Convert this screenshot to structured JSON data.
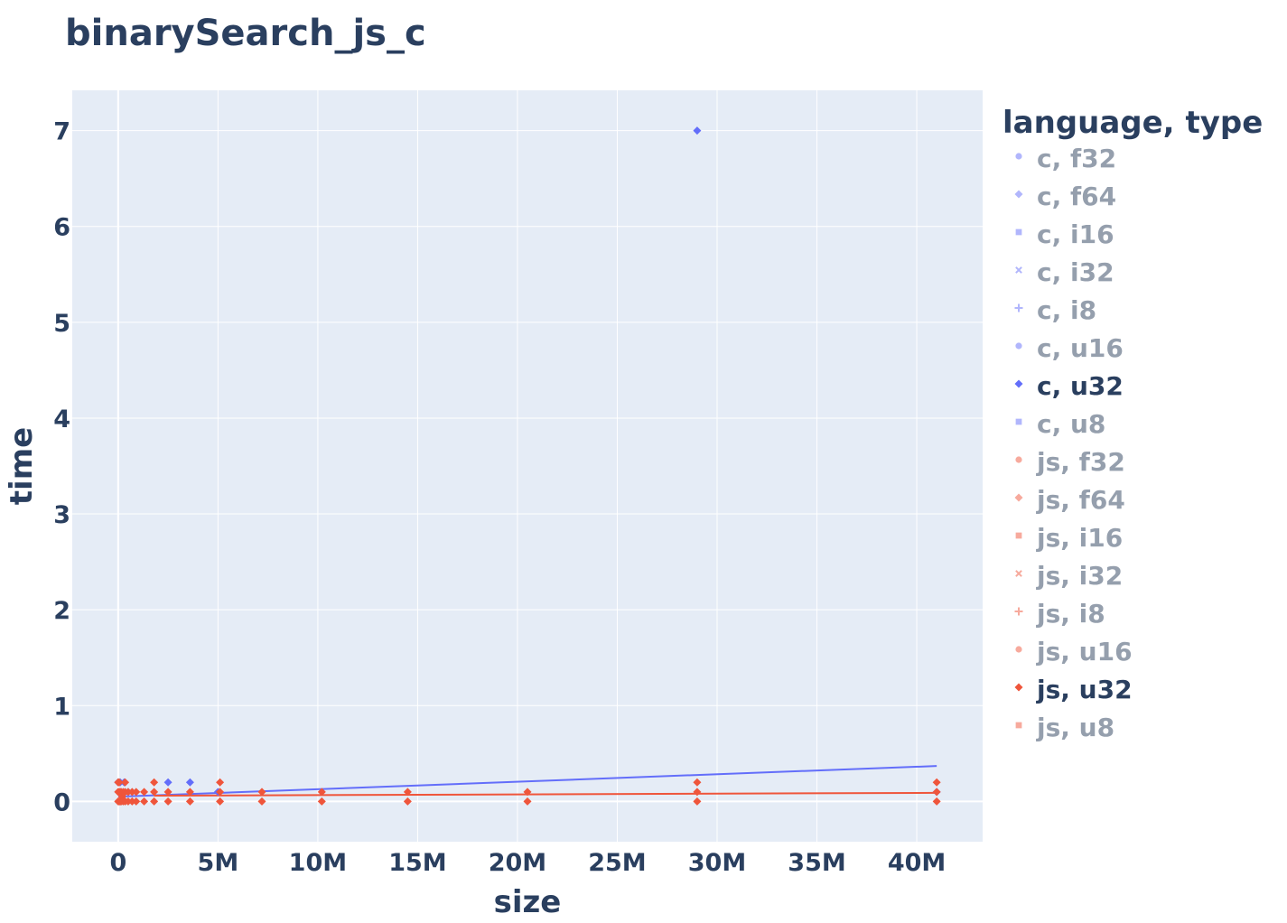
{
  "chart_data": {
    "type": "scatter",
    "title": "binarySearch_js_c",
    "xlabel": "size",
    "ylabel": "time",
    "xlim": [
      -2300000,
      43300000
    ],
    "ylim": [
      -0.42,
      7.42
    ],
    "x_ticks": [
      {
        "value": 0,
        "label": "0"
      },
      {
        "value": 5000000,
        "label": "5M"
      },
      {
        "value": 10000000,
        "label": "10M"
      },
      {
        "value": 15000000,
        "label": "15M"
      },
      {
        "value": 20000000,
        "label": "20M"
      },
      {
        "value": 25000000,
        "label": "25M"
      },
      {
        "value": 30000000,
        "label": "30M"
      },
      {
        "value": 35000000,
        "label": "35M"
      },
      {
        "value": 40000000,
        "label": "40M"
      }
    ],
    "y_ticks": [
      {
        "value": 0,
        "label": "0"
      },
      {
        "value": 1,
        "label": "1"
      },
      {
        "value": 2,
        "label": "2"
      },
      {
        "value": 3,
        "label": "3"
      },
      {
        "value": 4,
        "label": "4"
      },
      {
        "value": 5,
        "label": "5"
      },
      {
        "value": 6,
        "label": "6"
      },
      {
        "value": 7,
        "label": "7"
      }
    ],
    "grid": true,
    "legend_title": "language, type",
    "legend_position": "right",
    "legend": [
      {
        "name": "c, f32",
        "color": "#636efa",
        "symbol": "circle",
        "active": false
      },
      {
        "name": "c, f64",
        "color": "#636efa",
        "symbol": "diamond",
        "active": false
      },
      {
        "name": "c, i16",
        "color": "#636efa",
        "symbol": "square",
        "active": false
      },
      {
        "name": "c, i32",
        "color": "#636efa",
        "symbol": "x",
        "active": false
      },
      {
        "name": "c, i8",
        "color": "#636efa",
        "symbol": "cross",
        "active": false
      },
      {
        "name": "c, u16",
        "color": "#636efa",
        "symbol": "circle",
        "active": false
      },
      {
        "name": "c, u32",
        "color": "#636efa",
        "symbol": "diamond",
        "active": true
      },
      {
        "name": "c, u8",
        "color": "#636efa",
        "symbol": "square",
        "active": false
      },
      {
        "name": "js, f32",
        "color": "#ef553b",
        "symbol": "circle",
        "active": false
      },
      {
        "name": "js, f64",
        "color": "#ef553b",
        "symbol": "diamond",
        "active": false
      },
      {
        "name": "js, i16",
        "color": "#ef553b",
        "symbol": "square",
        "active": false
      },
      {
        "name": "js, i32",
        "color": "#ef553b",
        "symbol": "x",
        "active": false
      },
      {
        "name": "js, i8",
        "color": "#ef553b",
        "symbol": "cross",
        "active": false
      },
      {
        "name": "js, u16",
        "color": "#ef553b",
        "symbol": "circle",
        "active": false
      },
      {
        "name": "js, u32",
        "color": "#ef553b",
        "symbol": "diamond",
        "active": true
      },
      {
        "name": "js, u8",
        "color": "#ef553b",
        "symbol": "square",
        "active": false
      }
    ],
    "series": [
      {
        "name": "c, u32",
        "color": "#636efa",
        "symbol": "diamond",
        "points": [
          [
            0,
            0.2
          ],
          [
            100000,
            0.2
          ],
          [
            300000,
            0.2
          ],
          [
            500000,
            0.1
          ],
          [
            2500000,
            0.2
          ],
          [
            3600000,
            0.2
          ],
          [
            5000000,
            0.1
          ],
          [
            29000000,
            7.0
          ],
          [
            41000000,
            0.1
          ]
        ],
        "trendline": [
          [
            0,
            0.05
          ],
          [
            41000000,
            0.37
          ]
        ]
      },
      {
        "name": "js, u32",
        "color": "#ef553b",
        "symbol": "diamond",
        "points": [
          [
            0,
            0.0
          ],
          [
            0,
            0.1
          ],
          [
            0,
            0.2
          ],
          [
            50000,
            0.0
          ],
          [
            50000,
            0.1
          ],
          [
            50000,
            0.2
          ],
          [
            100000,
            0.0
          ],
          [
            100000,
            0.1
          ],
          [
            150000,
            0.0
          ],
          [
            150000,
            0.1
          ],
          [
            200000,
            0.05
          ],
          [
            250000,
            0.0
          ],
          [
            250000,
            0.1
          ],
          [
            350000,
            0.0
          ],
          [
            350000,
            0.1
          ],
          [
            350000,
            0.2
          ],
          [
            500000,
            0.0
          ],
          [
            500000,
            0.1
          ],
          [
            700000,
            0.0
          ],
          [
            700000,
            0.1
          ],
          [
            900000,
            0.0
          ],
          [
            900000,
            0.1
          ],
          [
            1300000,
            0.0
          ],
          [
            1300000,
            0.1
          ],
          [
            1800000,
            0.0
          ],
          [
            1800000,
            0.1
          ],
          [
            1800000,
            0.2
          ],
          [
            2500000,
            0.0
          ],
          [
            2500000,
            0.1
          ],
          [
            3600000,
            0.0
          ],
          [
            3600000,
            0.1
          ],
          [
            5100000,
            0.0
          ],
          [
            5100000,
            0.1
          ],
          [
            5100000,
            0.2
          ],
          [
            7200000,
            0.0
          ],
          [
            7200000,
            0.1
          ],
          [
            10200000,
            0.0
          ],
          [
            10200000,
            0.1
          ],
          [
            14500000,
            0.0
          ],
          [
            14500000,
            0.1
          ],
          [
            20500000,
            0.0
          ],
          [
            20500000,
            0.1
          ],
          [
            29000000,
            0.0
          ],
          [
            29000000,
            0.1
          ],
          [
            29000000,
            0.2
          ],
          [
            41000000,
            0.0
          ],
          [
            41000000,
            0.1
          ],
          [
            41000000,
            0.2
          ]
        ],
        "trendline": [
          [
            1800000,
            0.06
          ],
          [
            41000000,
            0.09
          ]
        ]
      }
    ]
  }
}
